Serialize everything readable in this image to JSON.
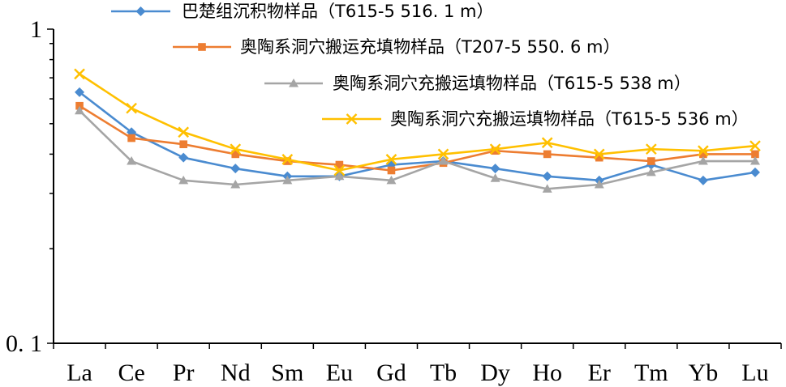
{
  "chart_data": {
    "type": "line",
    "y_scale": "log",
    "ylim": [
      0.1,
      1
    ],
    "y_ticks": [
      {
        "value": 1,
        "label": "1"
      },
      {
        "value": 0.1,
        "label": "0. 1"
      }
    ],
    "categories": [
      "La",
      "Ce",
      "Pr",
      "Nd",
      "Sm",
      "Eu",
      "Gd",
      "Tb",
      "Dy",
      "Ho",
      "Er",
      "Tm",
      "Yb",
      "Lu"
    ],
    "legend_position": "top-right",
    "grid": false,
    "series": [
      {
        "name": "巴楚组沉积物样品（T615-5 516. 1 m）",
        "color": "#4A8BD0",
        "marker": "diamond",
        "values": [
          0.63,
          0.47,
          0.39,
          0.36,
          0.34,
          0.34,
          0.37,
          0.38,
          0.36,
          0.34,
          0.33,
          0.37,
          0.33,
          0.35
        ]
      },
      {
        "name": "奥陶系洞穴搬运充填物样品（T207-5 550. 6 m）",
        "color": "#ED7D31",
        "marker": "square",
        "values": [
          0.57,
          0.45,
          0.43,
          0.4,
          0.38,
          0.37,
          0.355,
          0.375,
          0.41,
          0.4,
          0.39,
          0.38,
          0.4,
          0.4
        ]
      },
      {
        "name": "奥陶系洞穴充搬运填物样品（T615-5 538 m）",
        "color": "#A5A5A5",
        "marker": "triangle",
        "values": [
          0.55,
          0.38,
          0.33,
          0.32,
          0.33,
          0.34,
          0.33,
          0.38,
          0.335,
          0.31,
          0.32,
          0.35,
          0.38,
          0.38
        ]
      },
      {
        "name": "奥陶系洞穴充搬运填物样品（T615-5 536 m）",
        "color": "#FFC000",
        "marker": "x",
        "values": [
          0.72,
          0.56,
          0.47,
          0.415,
          0.385,
          0.355,
          0.385,
          0.4,
          0.415,
          0.435,
          0.4,
          0.415,
          0.41,
          0.425
        ]
      }
    ]
  }
}
